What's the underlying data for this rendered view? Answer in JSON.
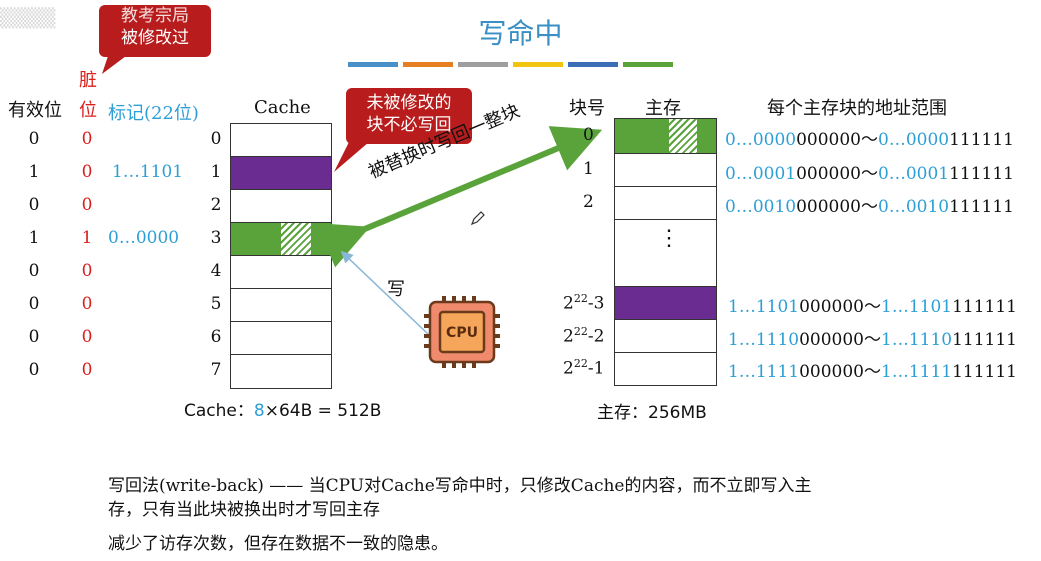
{
  "title": "写命中",
  "stripe_colors": [
    "#4a90c8",
    "#e67e22",
    "#9e9e9e",
    "#f1c40f",
    "#3a6db5",
    "#5aa33a"
  ],
  "header": {
    "valid": "有效位",
    "dirty": [
      "脏",
      "位"
    ],
    "tag": "标记(22位)",
    "cache": "Cache",
    "block_no": "块号",
    "memory": "主存",
    "addr_range": "每个主存块的地址范围"
  },
  "cache_lines": [
    {
      "valid": "0",
      "dirty": "0",
      "tag": "",
      "index": "0",
      "fill": "white"
    },
    {
      "valid": "1",
      "dirty": "0",
      "tag": "1…1101",
      "index": "1",
      "fill": "purple"
    },
    {
      "valid": "0",
      "dirty": "0",
      "tag": "",
      "index": "2",
      "fill": "white"
    },
    {
      "valid": "1",
      "dirty": "1",
      "tag": "0…0000",
      "index": "3",
      "fill": "green-modified"
    },
    {
      "valid": "0",
      "dirty": "0",
      "tag": "",
      "index": "4",
      "fill": "white"
    },
    {
      "valid": "0",
      "dirty": "0",
      "tag": "",
      "index": "5",
      "fill": "white"
    },
    {
      "valid": "0",
      "dirty": "0",
      "tag": "",
      "index": "6",
      "fill": "white"
    },
    {
      "valid": "0",
      "dirty": "0",
      "tag": "",
      "index": "7",
      "fill": "white"
    }
  ],
  "memory_blocks": [
    {
      "label": "0",
      "addr_tag": "0…0000",
      "addr_lo": "000000",
      "addr_tag2": "0…0000",
      "addr_hi": "111111"
    },
    {
      "label": "1",
      "addr_tag": "0…0001",
      "addr_lo": "000000",
      "addr_tag2": "0…0001",
      "addr_hi": "111111"
    },
    {
      "label": "2",
      "addr_tag": "0…0010",
      "addr_lo": "000000",
      "addr_tag2": "0…0010",
      "addr_hi": "111111"
    },
    {
      "label_base": "2",
      "label_sup": "22",
      "label_suffix": "-3",
      "addr_tag": "1…1101",
      "addr_lo": "000000",
      "addr_tag2": "1…1101",
      "addr_hi": "111111"
    },
    {
      "label_base": "2",
      "label_sup": "22",
      "label_suffix": "-2",
      "addr_tag": "1…1110",
      "addr_lo": "000000",
      "addr_tag2": "1…1110",
      "addr_hi": "111111"
    },
    {
      "label_base": "2",
      "label_sup": "22",
      "label_suffix": "-1",
      "addr_tag": "1…1111",
      "addr_lo": "000000",
      "addr_tag2": "1…1111",
      "addr_hi": "111111"
    }
  ],
  "tilde": "～",
  "vdots": "⋮",
  "cache_size": {
    "prefix": "Cache：",
    "count": "8",
    "suffix": "×64B = 512B"
  },
  "mem_size": "主存：256MB",
  "callouts": {
    "modified": "被修改过",
    "overlay": "教考宗局",
    "unmodified_line1": "未被修改的",
    "unmodified_line2": "块不必写回"
  },
  "arrow_label_writeback": "被替换时写回一整块",
  "arrow_label_write": "写",
  "cpu_label": "CPU",
  "footer": {
    "line1": "写回法(write-back) —— 当CPU对Cache写命中时，只修改Cache的内容，而不立即写入主",
    "line2": "存，只有当此块被换出时才写回主存",
    "line3": "减少了访存次数，但存在数据不一致的隐患。"
  },
  "colors": {
    "purple": "#6b2c91",
    "green": "#5aa33a",
    "callout_red": "#b81c1c",
    "title_blue": "#3a8fc4",
    "tag_blue": "#2e9fd6",
    "dirty_red": "#d9201d",
    "cpu_orange": "#f08a6c"
  }
}
